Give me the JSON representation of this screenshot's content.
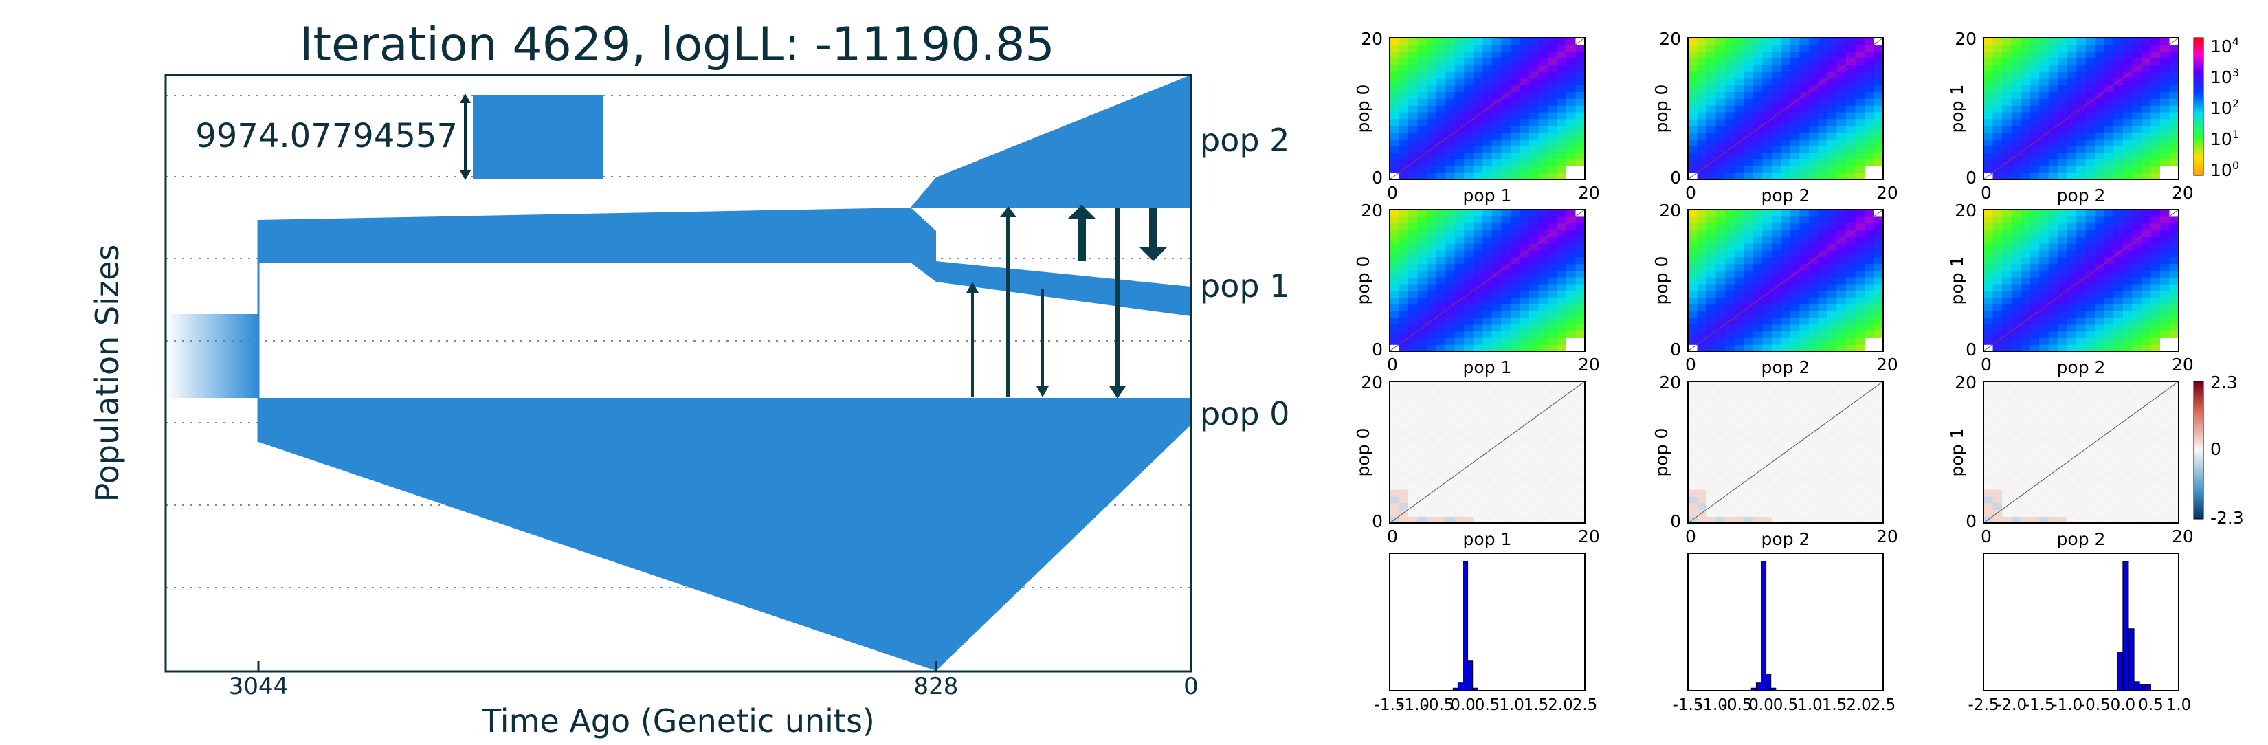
{
  "title": "Iteration 4629, logLL:  -11190.85",
  "model": {
    "xlabel": "Time Ago (Genetic units)",
    "ylabel": "Population Sizes",
    "scale_label": "9974.07794557",
    "time_ticks": [
      "3044",
      "828",
      "0"
    ],
    "pop_labels": [
      "pop 2",
      "pop 1",
      "pop 0"
    ],
    "color": "#2b89d4",
    "arrow_color": "#0d3a47"
  },
  "chart_data": [
    {
      "type": "heatmap",
      "xlabel": "pop 1",
      "ylabel": "pop 0",
      "xticks": [
        "0",
        "20"
      ],
      "yticks": [
        "0",
        "20"
      ]
    },
    {
      "type": "heatmap",
      "xlabel": "pop 2",
      "ylabel": "pop 0",
      "xticks": [
        "0",
        "20"
      ],
      "yticks": [
        "0",
        "20"
      ]
    },
    {
      "type": "heatmap",
      "xlabel": "pop 2",
      "ylabel": "pop 1",
      "xticks": [
        "0",
        "20"
      ],
      "yticks": [
        "0",
        "20"
      ],
      "colorbar": {
        "labels": [
          "10",
          "10",
          "10",
          "10",
          "10"
        ],
        "exponents": [
          "4",
          "3",
          "2",
          "1",
          "0"
        ],
        "scale": "log"
      }
    },
    {
      "type": "heatmap",
      "xlabel": "pop 1",
      "ylabel": "pop 0",
      "xticks": [
        "0",
        "20"
      ],
      "yticks": [
        "0",
        "20"
      ]
    },
    {
      "type": "heatmap",
      "xlabel": "pop 2",
      "ylabel": "pop 0",
      "xticks": [
        "0",
        "20"
      ],
      "yticks": [
        "0",
        "20"
      ]
    },
    {
      "type": "heatmap",
      "xlabel": "pop 2",
      "ylabel": "pop 1",
      "xticks": [
        "0",
        "20"
      ],
      "yticks": [
        "0",
        "20"
      ]
    },
    {
      "type": "heatmap",
      "xlabel": "pop 1",
      "ylabel": "pop 0",
      "xticks": [
        "0",
        "20"
      ],
      "yticks": [
        "0",
        "20"
      ]
    },
    {
      "type": "heatmap",
      "xlabel": "pop 2",
      "ylabel": "pop 0",
      "xticks": [
        "0",
        "20"
      ],
      "yticks": [
        "0",
        "20"
      ]
    },
    {
      "type": "heatmap",
      "xlabel": "pop 2",
      "ylabel": "pop 1",
      "xticks": [
        "0",
        "20"
      ],
      "yticks": [
        "0",
        "20"
      ],
      "colorbar": {
        "labels": [
          "2.3",
          "0",
          "-2.3"
        ]
      }
    },
    {
      "type": "bar",
      "xlim": [
        -1.5,
        2.5
      ],
      "xticks": [
        "-1.5",
        "-1.0",
        "-0.5",
        "0.0",
        "0.5",
        "1.0",
        "1.5",
        "2.0",
        "2.5"
      ],
      "bins": [
        -0.2,
        -0.1,
        0.0,
        0.1,
        0.2,
        0.3
      ],
      "values": [
        0.02,
        0.06,
        1.0,
        0.23,
        0.02,
        0.0
      ]
    },
    {
      "type": "bar",
      "xlim": [
        -1.5,
        2.5
      ],
      "xticks": [
        "-1.5",
        "-1.0",
        "-0.5",
        "0.0",
        "0.5",
        "1.0",
        "1.5",
        "2.0",
        "2.5"
      ],
      "bins": [
        -0.2,
        -0.1,
        0.0,
        0.1,
        0.2,
        0.3
      ],
      "values": [
        0.02,
        0.06,
        1.0,
        0.13,
        0.02,
        0.0
      ]
    },
    {
      "type": "bar",
      "xlim": [
        -2.5,
        1.0
      ],
      "xticks": [
        "-2.5",
        "-2.0",
        "-1.5",
        "-1.0",
        "-0.5",
        "0.0",
        "0.5",
        "1.0"
      ],
      "bins": [
        -0.1,
        0.0,
        0.1,
        0.2,
        0.3,
        0.4
      ],
      "values": [
        0.3,
        1.0,
        0.48,
        0.07,
        0.05,
        0.05
      ]
    }
  ]
}
